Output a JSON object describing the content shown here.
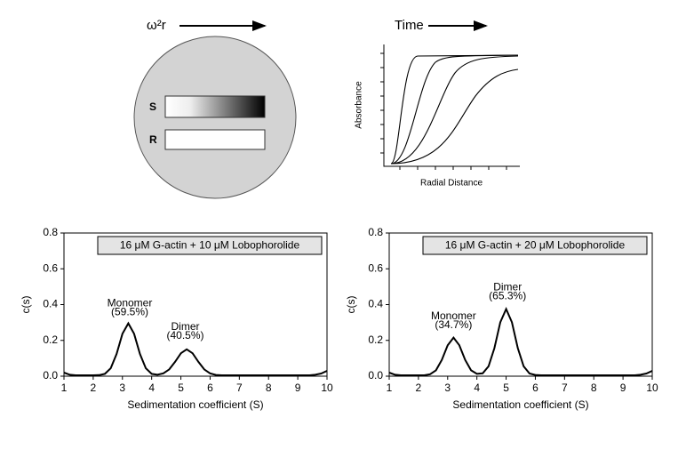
{
  "diagram": {
    "rotor_label": "ω²r",
    "sample_label": "S",
    "reference_label": "R"
  },
  "schematic": {
    "time_label": "Time",
    "y_label": "Absorbance",
    "x_label": "Radial Distance"
  },
  "chart_data": [
    {
      "type": "line",
      "title": "16 μM G-actin + 10 μM Lobophorolide",
      "x_label": "Sedimentation coefficient (S)",
      "y_label": "c(s)",
      "color": "#000000",
      "xlim": [
        1,
        10
      ],
      "xticks": [
        1,
        2,
        3,
        4,
        5,
        6,
        7,
        8,
        9,
        10
      ],
      "ylim": [
        0,
        0.8
      ],
      "yticks": [
        {
          "value": 0,
          "label": "0.0"
        },
        0.2,
        0.4,
        0.6,
        0.8
      ],
      "annotations": [
        "Monomer",
        "(59.5%)",
        "Dimer",
        "(40.5%)"
      ],
      "x": [
        1.0,
        1.2,
        1.4,
        1.6,
        1.8,
        2.0,
        2.2,
        2.4,
        2.6,
        2.8,
        3.0,
        3.2,
        3.4,
        3.6,
        3.8,
        4.0,
        4.2,
        4.4,
        4.6,
        4.8,
        5.0,
        5.2,
        5.4,
        5.6,
        5.8,
        6.0,
        6.2,
        6.4,
        6.6,
        6.8,
        7.0,
        7.2,
        7.4,
        7.6,
        7.8,
        8.0,
        8.2,
        8.4,
        8.6,
        8.8,
        9.0,
        9.2,
        9.4,
        9.6,
        9.8,
        10.0
      ],
      "values": [
        0.02,
        0.008,
        0.005,
        0.005,
        0.005,
        0.005,
        0.006,
        0.013,
        0.044,
        0.124,
        0.237,
        0.295,
        0.237,
        0.124,
        0.044,
        0.013,
        0.008,
        0.016,
        0.038,
        0.08,
        0.128,
        0.15,
        0.128,
        0.08,
        0.038,
        0.016,
        0.007,
        0.005,
        0.005,
        0.005,
        0.005,
        0.005,
        0.005,
        0.005,
        0.005,
        0.005,
        0.005,
        0.005,
        0.005,
        0.005,
        0.005,
        0.005,
        0.005,
        0.008,
        0.015,
        0.03
      ]
    },
    {
      "type": "line",
      "title": "16 μM G-actin + 20 μM Lobophorolide",
      "x_label": "Sedimentation coefficient (S)",
      "y_label": "c(s)",
      "color": "#000000",
      "xlim": [
        1,
        10
      ],
      "xticks": [
        1,
        2,
        3,
        4,
        5,
        6,
        7,
        8,
        9,
        10
      ],
      "ylim": [
        0,
        0.8
      ],
      "yticks": [
        {
          "value": 0,
          "label": "0.0"
        },
        0.2,
        0.4,
        0.6,
        0.8
      ],
      "annotations": [
        "Monomer",
        "(34.7%)",
        "Dimer",
        "(65.3%)"
      ],
      "x": [
        1.0,
        1.2,
        1.4,
        1.6,
        1.8,
        2.0,
        2.2,
        2.4,
        2.6,
        2.8,
        3.0,
        3.2,
        3.4,
        3.6,
        3.8,
        4.0,
        4.2,
        4.4,
        4.6,
        4.8,
        5.0,
        5.2,
        5.4,
        5.6,
        5.8,
        6.0,
        6.2,
        6.4,
        6.6,
        6.8,
        7.0,
        7.2,
        7.4,
        7.6,
        7.8,
        8.0,
        8.2,
        8.4,
        8.6,
        8.8,
        9.0,
        9.2,
        9.4,
        9.6,
        9.8,
        10.0
      ],
      "values": [
        0.02,
        0.008,
        0.005,
        0.005,
        0.005,
        0.005,
        0.005,
        0.011,
        0.033,
        0.091,
        0.173,
        0.215,
        0.173,
        0.091,
        0.033,
        0.013,
        0.016,
        0.055,
        0.157,
        0.301,
        0.375,
        0.301,
        0.157,
        0.055,
        0.015,
        0.007,
        0.005,
        0.005,
        0.005,
        0.005,
        0.005,
        0.005,
        0.005,
        0.005,
        0.005,
        0.005,
        0.005,
        0.005,
        0.005,
        0.005,
        0.005,
        0.005,
        0.005,
        0.008,
        0.015,
        0.03
      ]
    }
  ]
}
